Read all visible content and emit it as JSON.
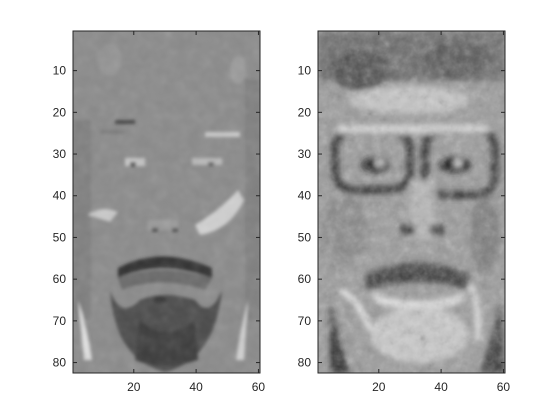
{
  "chart_data": [
    {
      "type": "heatmap",
      "colormap": "gray",
      "xlim": [
        0.5,
        60.5
      ],
      "ylim": [
        0.5,
        82.5
      ],
      "y_direction": "reverse",
      "xticks": [
        20,
        40,
        60
      ],
      "yticks": [
        10,
        20,
        30,
        40,
        50,
        60,
        70,
        80
      ],
      "content": "grayscale face image (low-variance component)"
    },
    {
      "type": "heatmap",
      "colormap": "gray",
      "xlim": [
        0.5,
        60.5
      ],
      "ylim": [
        0.5,
        82.5
      ],
      "y_direction": "reverse",
      "xticks": [
        20,
        40,
        60
      ],
      "yticks": [
        10,
        20,
        30,
        40,
        50,
        60,
        70,
        80
      ],
      "content": "grayscale face image (high-contrast edge component)"
    }
  ]
}
